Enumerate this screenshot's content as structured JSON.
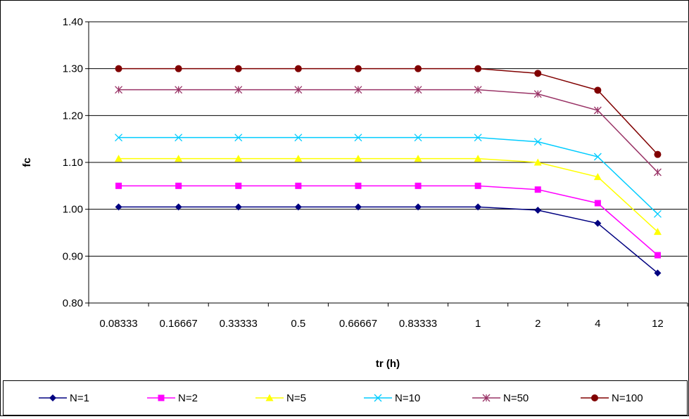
{
  "chart_data": {
    "type": "line",
    "xlabel": "tr (h)",
    "ylabel": "fc",
    "categories": [
      "0.08333",
      "0.16667",
      "0.33333",
      "0.5",
      "0.66667",
      "0.83333",
      "1",
      "2",
      "4",
      "12"
    ],
    "ylim": [
      0.8,
      1.4
    ],
    "yticks": [
      "0.80",
      "0.90",
      "1.00",
      "1.10",
      "1.20",
      "1.30",
      "1.40"
    ],
    "grid": true,
    "legend_position": "bottom",
    "series": [
      {
        "name": "N=1",
        "color": "#000080",
        "marker": "diamond",
        "values": [
          1.005,
          1.005,
          1.005,
          1.005,
          1.005,
          1.005,
          1.005,
          0.998,
          0.97,
          0.864
        ]
      },
      {
        "name": "N=2",
        "color": "#ff00ff",
        "marker": "square",
        "values": [
          1.05,
          1.05,
          1.05,
          1.05,
          1.05,
          1.05,
          1.05,
          1.042,
          1.013,
          0.902
        ]
      },
      {
        "name": "N=5",
        "color": "#ffff00",
        "marker": "triangle",
        "values": [
          1.108,
          1.108,
          1.108,
          1.108,
          1.108,
          1.108,
          1.108,
          1.1,
          1.069,
          0.952
        ]
      },
      {
        "name": "N=10",
        "color": "#00ccff",
        "marker": "x",
        "values": [
          1.153,
          1.153,
          1.153,
          1.153,
          1.153,
          1.153,
          1.153,
          1.144,
          1.112,
          0.99
        ]
      },
      {
        "name": "N=50",
        "color": "#993366",
        "marker": "star",
        "values": [
          1.255,
          1.255,
          1.255,
          1.255,
          1.255,
          1.255,
          1.255,
          1.246,
          1.211,
          1.079
        ]
      },
      {
        "name": "N=100",
        "color": "#800000",
        "marker": "circle",
        "values": [
          1.3,
          1.3,
          1.3,
          1.3,
          1.3,
          1.3,
          1.3,
          1.29,
          1.254,
          1.117
        ]
      }
    ]
  }
}
